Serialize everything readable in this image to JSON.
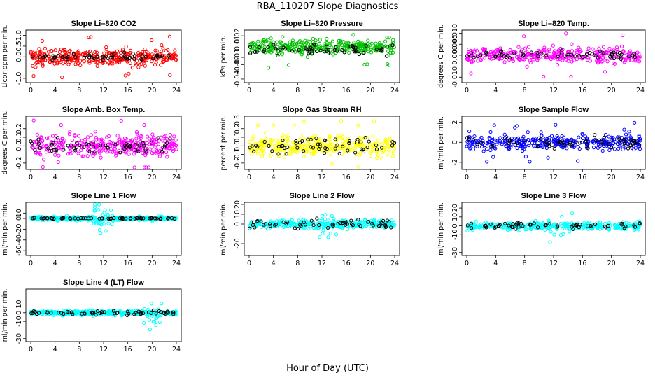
{
  "figure": {
    "title": "RBA_110207  Slope Diagnostics",
    "xlabel": "Hour of Day (UTC)"
  },
  "chart_data": [
    {
      "type": "scatter",
      "title": "Slope Li–820 CO2",
      "ylabel": "Licor ppm per min.",
      "xlim": [
        0,
        24
      ],
      "ylim": [
        -1.1,
        1.15
      ],
      "xticks": [
        0,
        4,
        8,
        12,
        16,
        20,
        24
      ],
      "yticks": [
        "-1.0",
        "0.0",
        "0.5",
        "1.0"
      ],
      "ytick_values": [
        -1.0,
        0.0,
        0.5,
        1.0
      ],
      "color": "#ff0000",
      "series": [
        {
          "name": "red",
          "spread": 0.28,
          "outlier_max": 1.05
        },
        {
          "name": "black",
          "spread": 0.15
        }
      ]
    },
    {
      "type": "scatter",
      "title": "Slope Li–820 Pressure",
      "ylabel": "kPa per min.",
      "xlim": [
        0,
        24
      ],
      "ylim": [
        -0.042,
        0.025
      ],
      "xticks": [
        0,
        4,
        8,
        12,
        16,
        20,
        24
      ],
      "yticks": [
        "-0.04",
        "-0.02",
        "-0.01",
        "0.01",
        "0.02"
      ],
      "ytick_values": [
        -0.04,
        -0.02,
        -0.01,
        0.01,
        0.02
      ],
      "color": "#00c000",
      "series": [
        {
          "name": "green",
          "spread": 0.007,
          "center": 0.004,
          "outlier_max": 0.025
        },
        {
          "name": "black",
          "spread": 0.006,
          "center": 0.001
        }
      ]
    },
    {
      "type": "scatter",
      "title": "Slope Li–820 Temp.",
      "ylabel": "degrees C per min.",
      "xlim": [
        0,
        24
      ],
      "ylim": [
        -0.0115,
        0.0105
      ],
      "xticks": [
        0,
        4,
        8,
        12,
        16,
        20,
        24
      ],
      "yticks": [
        "-0.010",
        "0.000",
        "0.005",
        "0.010"
      ],
      "ytick_values": [
        -0.01,
        0.0,
        0.005,
        0.01
      ],
      "color": "#ff00ff",
      "series": [
        {
          "name": "magenta",
          "spread": 0.0025,
          "outlier_max": 0.01
        },
        {
          "name": "black",
          "spread": 0.0015
        }
      ]
    },
    {
      "type": "scatter",
      "title": "Slope Amb. Box Temp.",
      "ylabel": "degrees C per min.",
      "xlim": [
        0,
        24
      ],
      "ylim": [
        -0.25,
        0.32
      ],
      "xticks": [
        0,
        4,
        8,
        12,
        16,
        20,
        24
      ],
      "yticks": [
        "-0.2",
        "0.0",
        "0.1",
        "0.2"
      ],
      "ytick_values": [
        -0.2,
        0.0,
        0.1,
        0.2
      ],
      "color": "#ff00ff",
      "series": [
        {
          "name": "magenta",
          "spread": 0.09,
          "outlier_max": 0.3
        },
        {
          "name": "black",
          "spread": 0.07
        }
      ]
    },
    {
      "type": "scatter",
      "title": "Slope Gas Stream RH",
      "ylabel": "percent per min.",
      "xlim": [
        0,
        24
      ],
      "ylim": [
        -0.25,
        0.32
      ],
      "xticks": [
        0,
        4,
        8,
        12,
        16,
        20,
        24
      ],
      "yticks": [
        "-0.2",
        "-0.1",
        "0.0",
        "0.1",
        "0.2",
        "0.3"
      ],
      "ytick_values": [
        -0.2,
        -0.1,
        0.0,
        0.1,
        0.2,
        0.3
      ],
      "color": "#ffff00",
      "series": [
        {
          "name": "yellow",
          "spread": 0.08,
          "outlier_max": 0.3
        },
        {
          "name": "black",
          "spread": 0.09
        }
      ]
    },
    {
      "type": "scatter",
      "title": "Slope Sample Flow",
      "ylabel": "ml/min per min.",
      "xlim": [
        0,
        24
      ],
      "ylim": [
        -2.5,
        2.4
      ],
      "xticks": [
        0,
        4,
        8,
        12,
        16,
        20,
        24
      ],
      "yticks": [
        "-2",
        "0",
        "2"
      ],
      "ytick_values": [
        -2,
        0,
        2
      ],
      "color": "#0000ff",
      "series": [
        {
          "name": "blue",
          "spread": 0.6,
          "outlier_max": 2.0
        },
        {
          "name": "black",
          "spread": 0.6
        }
      ]
    },
    {
      "type": "scatter",
      "title": "Slope Line 1 Flow",
      "ylabel": "ml/min per min.",
      "xlim": [
        0,
        24
      ],
      "ylim": [
        -65,
        26
      ],
      "xticks": [
        0,
        4,
        8,
        12,
        16,
        20,
        24
      ],
      "yticks": [
        "-60",
        "-40",
        "-20",
        "0",
        "10"
      ],
      "ytick_values": [
        -60,
        -40,
        -20,
        0,
        10
      ],
      "color": "#00ffff",
      "series": [
        {
          "name": "cyan",
          "spread": 2.5,
          "burst_hour": 12,
          "burst_spread": 35
        },
        {
          "name": "black",
          "spread": 1.0
        }
      ]
    },
    {
      "type": "scatter",
      "title": "Slope Line 2 Flow",
      "ylabel": "ml/min per min.",
      "xlim": [
        0,
        24
      ],
      "ylim": [
        -30,
        20
      ],
      "xticks": [
        0,
        4,
        8,
        12,
        16,
        20,
        24
      ],
      "yticks": [
        "-20",
        "0",
        "10",
        "20"
      ],
      "ytick_values": [
        -20,
        0,
        10,
        20
      ],
      "color": "#00ffff",
      "series": [
        {
          "name": "cyan",
          "spread": 3.0,
          "burst_hour": 13,
          "burst_spread": 10
        },
        {
          "name": "black",
          "spread": 4.0
        }
      ]
    },
    {
      "type": "scatter",
      "title": "Slope Line 3 Flow",
      "ylabel": "ml/min per min.",
      "xlim": [
        0,
        24
      ],
      "ylim": [
        -31,
        24
      ],
      "xticks": [
        0,
        4,
        8,
        12,
        16,
        20,
        24
      ],
      "yticks": [
        "-30",
        "-10",
        "0",
        "10",
        "20"
      ],
      "ytick_values": [
        -30,
        -10,
        0,
        10,
        20
      ],
      "color": "#00ffff",
      "series": [
        {
          "name": "cyan",
          "spread": 3.0,
          "burst_hour": 13,
          "burst_spread": 10
        },
        {
          "name": "black",
          "spread": 3.0
        }
      ]
    },
    {
      "type": "scatter",
      "title": "Slope Line 4 (LT) Flow",
      "ylabel": "ml/min per min.",
      "xlim": [
        0,
        24
      ],
      "ylim": [
        -31,
        25
      ],
      "xticks": [
        0,
        4,
        8,
        12,
        16,
        20,
        24
      ],
      "yticks": [
        "-30",
        "-10",
        "0",
        "10"
      ],
      "ytick_values": [
        -30,
        -10,
        0,
        10
      ],
      "color": "#00ffff",
      "series": [
        {
          "name": "cyan",
          "spread": 2.0,
          "burst_hour": 20,
          "burst_spread": 12
        },
        {
          "name": "black",
          "spread": 2.0
        }
      ]
    }
  ]
}
